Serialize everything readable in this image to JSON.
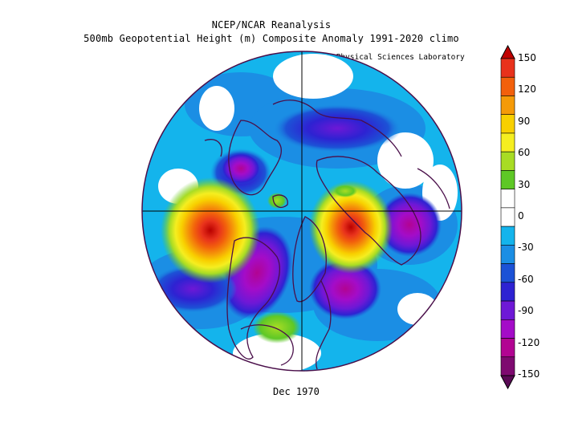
{
  "header": {
    "title_line1": "NCEP/NCAR Reanalysis",
    "title_line2": "500mb Geopotential Height (m) Composite Anomaly 1991-2020 climo",
    "credit": "NOAA Physical Sciences Laboratory"
  },
  "footer": {
    "date": "Dec 1970"
  },
  "colorbar": {
    "labels": [
      "150",
      "120",
      "90",
      "60",
      "30",
      "0",
      "-30",
      "-60",
      "-90",
      "-120",
      "-150"
    ],
    "colors": [
      "#e8321c",
      "#f2600c",
      "#f59a08",
      "#f8d000",
      "#f5ee20",
      "#a8dc24",
      "#5ec826",
      "#ffffff",
      "#ffffff",
      "#14b4ec",
      "#1b8ee4",
      "#1c52d6",
      "#2e22d2",
      "#6e18d6",
      "#a40cc8",
      "#b20492",
      "#7e0a70"
    ]
  },
  "map": {
    "projection": "north-polar-stereographic",
    "field": "500mb geopotential height anomaly",
    "units": "m"
  }
}
